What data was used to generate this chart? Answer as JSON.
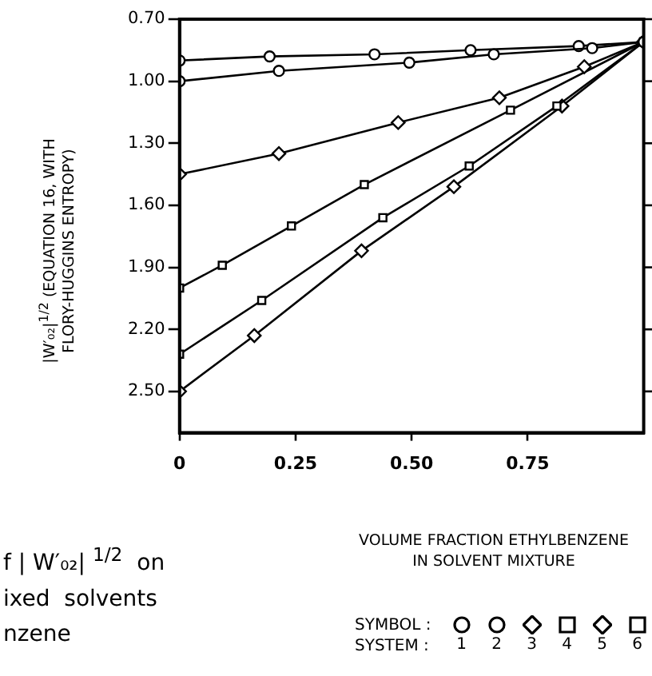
{
  "chart_data": {
    "type": "line",
    "xlabel": "VOLUME FRACTION ETHYLBENZENE\nIN SOLVENT MIXTURE",
    "ylabel": "|W′₀₂|$^{1/2}$ (EQUATION 16, WITH\nFLORY-HUGGINS ENTROPY)",
    "xlim": [
      0,
      1
    ],
    "xticks": [
      0,
      0.25,
      {
        "value": 0.5,
        "label": "0.50"
      },
      0.75
    ],
    "ylim": [
      2.7,
      0.7
    ],
    "yticks": [
      {
        "value": 0.7,
        "label": "0.70"
      },
      {
        "value": 1.0,
        "label": "1.00"
      },
      {
        "value": 1.3,
        "label": "1.30"
      },
      {
        "value": 1.6,
        "label": "1.60"
      },
      {
        "value": 1.9,
        "label": "1.90"
      },
      {
        "value": 2.2,
        "label": "2.20"
      },
      {
        "value": 2.5,
        "label": "2.50"
      }
    ],
    "grid": false,
    "legend": "bottom right",
    "legend_title": "SYMBOL :\nSYSTEM :",
    "line_style": "solid",
    "annotations": [
      "f | W′₀₂| $^{1/2}$  on\nixed  solvents\nnzene"
    ],
    "series": [
      {
        "name": "1",
        "color": "#000000",
        "marker": "circle",
        "x": [
          0,
          0.214,
          0.495,
          0.677,
          0.889,
          1
        ],
        "values": [
          1.0,
          0.95,
          0.91,
          0.87,
          0.84,
          0.81
        ]
      },
      {
        "name": "2",
        "color": "#000000",
        "marker": "circle",
        "x": [
          0,
          0.194,
          0.42,
          0.627,
          0.86,
          1
        ],
        "values": [
          0.9,
          0.88,
          0.87,
          0.85,
          0.83,
          0.81
        ]
      },
      {
        "name": "3",
        "color": "#000000",
        "marker": "diamond",
        "x": [
          0,
          0.214,
          0.471,
          0.689,
          0.872,
          1
        ],
        "values": [
          1.45,
          1.35,
          1.2,
          1.08,
          0.93,
          0.81
        ]
      },
      {
        "name": "4",
        "color": "#000000",
        "marker": "square",
        "x": [
          0,
          0.177,
          0.438,
          0.624,
          0.813,
          1
        ],
        "values": [
          2.32,
          2.06,
          1.66,
          1.41,
          1.12,
          0.81
        ]
      },
      {
        "name": "5",
        "color": "#000000",
        "marker": "diamond",
        "x": [
          0,
          0.161,
          0.392,
          0.591,
          0.824,
          1
        ],
        "values": [
          2.5,
          2.23,
          1.82,
          1.51,
          1.12,
          0.81
        ]
      },
      {
        "name": "6",
        "color": "#000000",
        "marker": "square",
        "x": [
          0,
          0.092,
          0.241,
          0.398,
          0.713,
          1
        ],
        "values": [
          2.0,
          1.89,
          1.7,
          1.5,
          1.14,
          0.81
        ]
      }
    ]
  }
}
